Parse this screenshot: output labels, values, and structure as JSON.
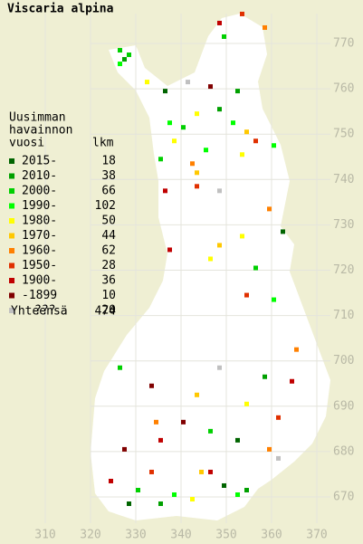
{
  "title": "Viscaria alpina",
  "legend": {
    "heading": [
      "Uusimman",
      "havainnon",
      "vuosi"
    ],
    "count_heading": "lkm",
    "items": [
      {
        "label": "2015-",
        "count": 18,
        "color": "#006400"
      },
      {
        "label": "2010-",
        "count": 38,
        "color": "#00a000"
      },
      {
        "label": "2000-",
        "count": 66,
        "color": "#00d000"
      },
      {
        "label": "1990-",
        "count": 102,
        "color": "#00ff00"
      },
      {
        "label": "1980-",
        "count": 50,
        "color": "#ffff00"
      },
      {
        "label": "1970-",
        "count": 44,
        "color": "#ffc800"
      },
      {
        "label": "1960-",
        "count": 62,
        "color": "#ff8000"
      },
      {
        "label": "1950-",
        "count": 28,
        "color": "#e03000"
      },
      {
        "label": "1900-",
        "count": 36,
        "color": "#c00000"
      },
      {
        "label": "-1899",
        "count": 10,
        "color": "#800000"
      },
      {
        "label": "???",
        "count": 20,
        "color": "#c0c0c0"
      }
    ],
    "total_label": "Yhteensä",
    "total": 474
  },
  "northing_ticks": [
    770,
    760,
    750,
    740,
    730,
    720,
    710,
    700,
    690,
    680,
    670
  ],
  "easting_ticks": [
    310,
    320,
    330,
    340,
    350,
    360,
    370
  ],
  "cells": [
    [
      326,
      768,
      2
    ],
    [
      327,
      766,
      1
    ],
    [
      328,
      767,
      2
    ],
    [
      326,
      765,
      3
    ],
    [
      353,
      776,
      7
    ],
    [
      348,
      774,
      8
    ],
    [
      349,
      771,
      2
    ],
    [
      358,
      773,
      6
    ],
    [
      337,
      752,
      3
    ],
    [
      340,
      751,
      2
    ],
    [
      343,
      754,
      4
    ],
    [
      348,
      755,
      1
    ],
    [
      351,
      752,
      3
    ],
    [
      354,
      750,
      5
    ],
    [
      356,
      748,
      7
    ],
    [
      338,
      748,
      4
    ],
    [
      342,
      743,
      6
    ],
    [
      343,
      741,
      5
    ],
    [
      345,
      746,
      3
    ],
    [
      335,
      744,
      2
    ],
    [
      360,
      747,
      3
    ],
    [
      353,
      745,
      4
    ],
    [
      332,
      761,
      4
    ],
    [
      336,
      759,
      0
    ],
    [
      341,
      761,
      10
    ],
    [
      346,
      760,
      9
    ],
    [
      352,
      759,
      1
    ],
    [
      336,
      737,
      8
    ],
    [
      343,
      738,
      7
    ],
    [
      348,
      737,
      10
    ],
    [
      359,
      733,
      6
    ],
    [
      362,
      728,
      0
    ],
    [
      353,
      727,
      4
    ],
    [
      348,
      725,
      5
    ],
    [
      346,
      722,
      4
    ],
    [
      337,
      724,
      8
    ],
    [
      356,
      720,
      2
    ],
    [
      354,
      714,
      7
    ],
    [
      360,
      713,
      3
    ],
    [
      365,
      702,
      6
    ],
    [
      326,
      698,
      2
    ],
    [
      333,
      694,
      9
    ],
    [
      343,
      692,
      5
    ],
    [
      348,
      698,
      10
    ],
    [
      358,
      696,
      1
    ],
    [
      364,
      695,
      8
    ],
    [
      334,
      686,
      6
    ],
    [
      340,
      686,
      9
    ],
    [
      354,
      690,
      4
    ],
    [
      361,
      687,
      7
    ],
    [
      335,
      682,
      8
    ],
    [
      346,
      684,
      2
    ],
    [
      352,
      682,
      0
    ],
    [
      359,
      680,
      6
    ],
    [
      327,
      680,
      9
    ],
    [
      324,
      673,
      8
    ],
    [
      330,
      671,
      2
    ],
    [
      335,
      668,
      1
    ],
    [
      338,
      670,
      3
    ],
    [
      344,
      675,
      5
    ],
    [
      349,
      672,
      0
    ],
    [
      352,
      670,
      3
    ],
    [
      354,
      671,
      1
    ],
    [
      333,
      675,
      7
    ],
    [
      342,
      669,
      4
    ],
    [
      328,
      668,
      0
    ],
    [
      361,
      678,
      10
    ],
    [
      346,
      675,
      8
    ]
  ]
}
